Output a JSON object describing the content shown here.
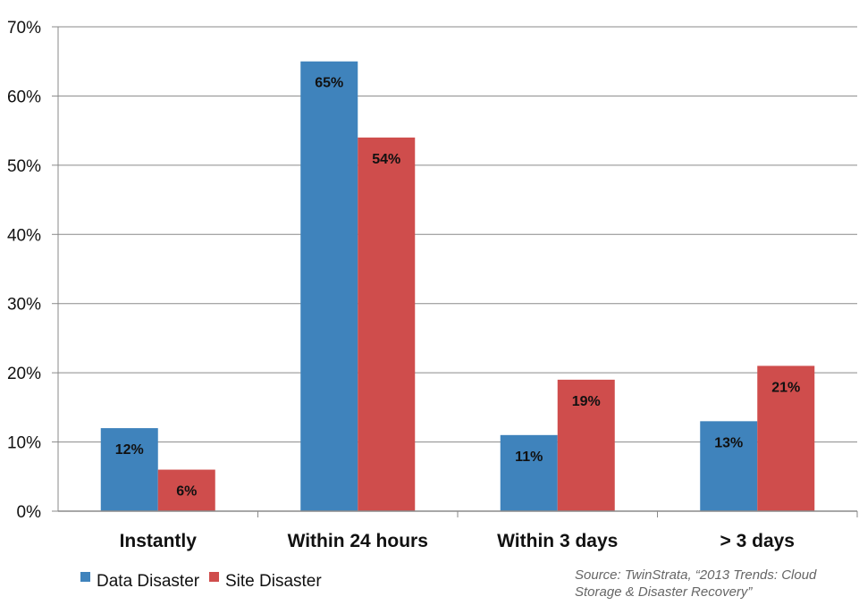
{
  "chart_data": {
    "type": "bar",
    "categories": [
      "Instantly",
      "Within 24 hours",
      "Within 3 days",
      "> 3 days"
    ],
    "series": [
      {
        "name": "Data Disaster",
        "color": "#3f83bc",
        "values": [
          12,
          65,
          11,
          13
        ],
        "labels": [
          "12%",
          "65%",
          "11%",
          "13%"
        ]
      },
      {
        "name": "Site Disaster",
        "color": "#cf4d4c",
        "values": [
          6,
          54,
          19,
          21
        ],
        "labels": [
          "6%",
          "54%",
          "19%",
          "21%"
        ]
      }
    ],
    "y_ticks": [
      0,
      10,
      20,
      30,
      40,
      50,
      60,
      70
    ],
    "y_tick_labels": [
      "0%",
      "10%",
      "20%",
      "30%",
      "40%",
      "50%",
      "60%",
      "70%"
    ],
    "ylim": [
      0,
      70
    ],
    "grid": true,
    "legend_position": "bottom-left",
    "source_lines": [
      "Source: TwinStrata, “2013 Trends: Cloud",
      "Storage & Disaster Recovery”"
    ]
  }
}
